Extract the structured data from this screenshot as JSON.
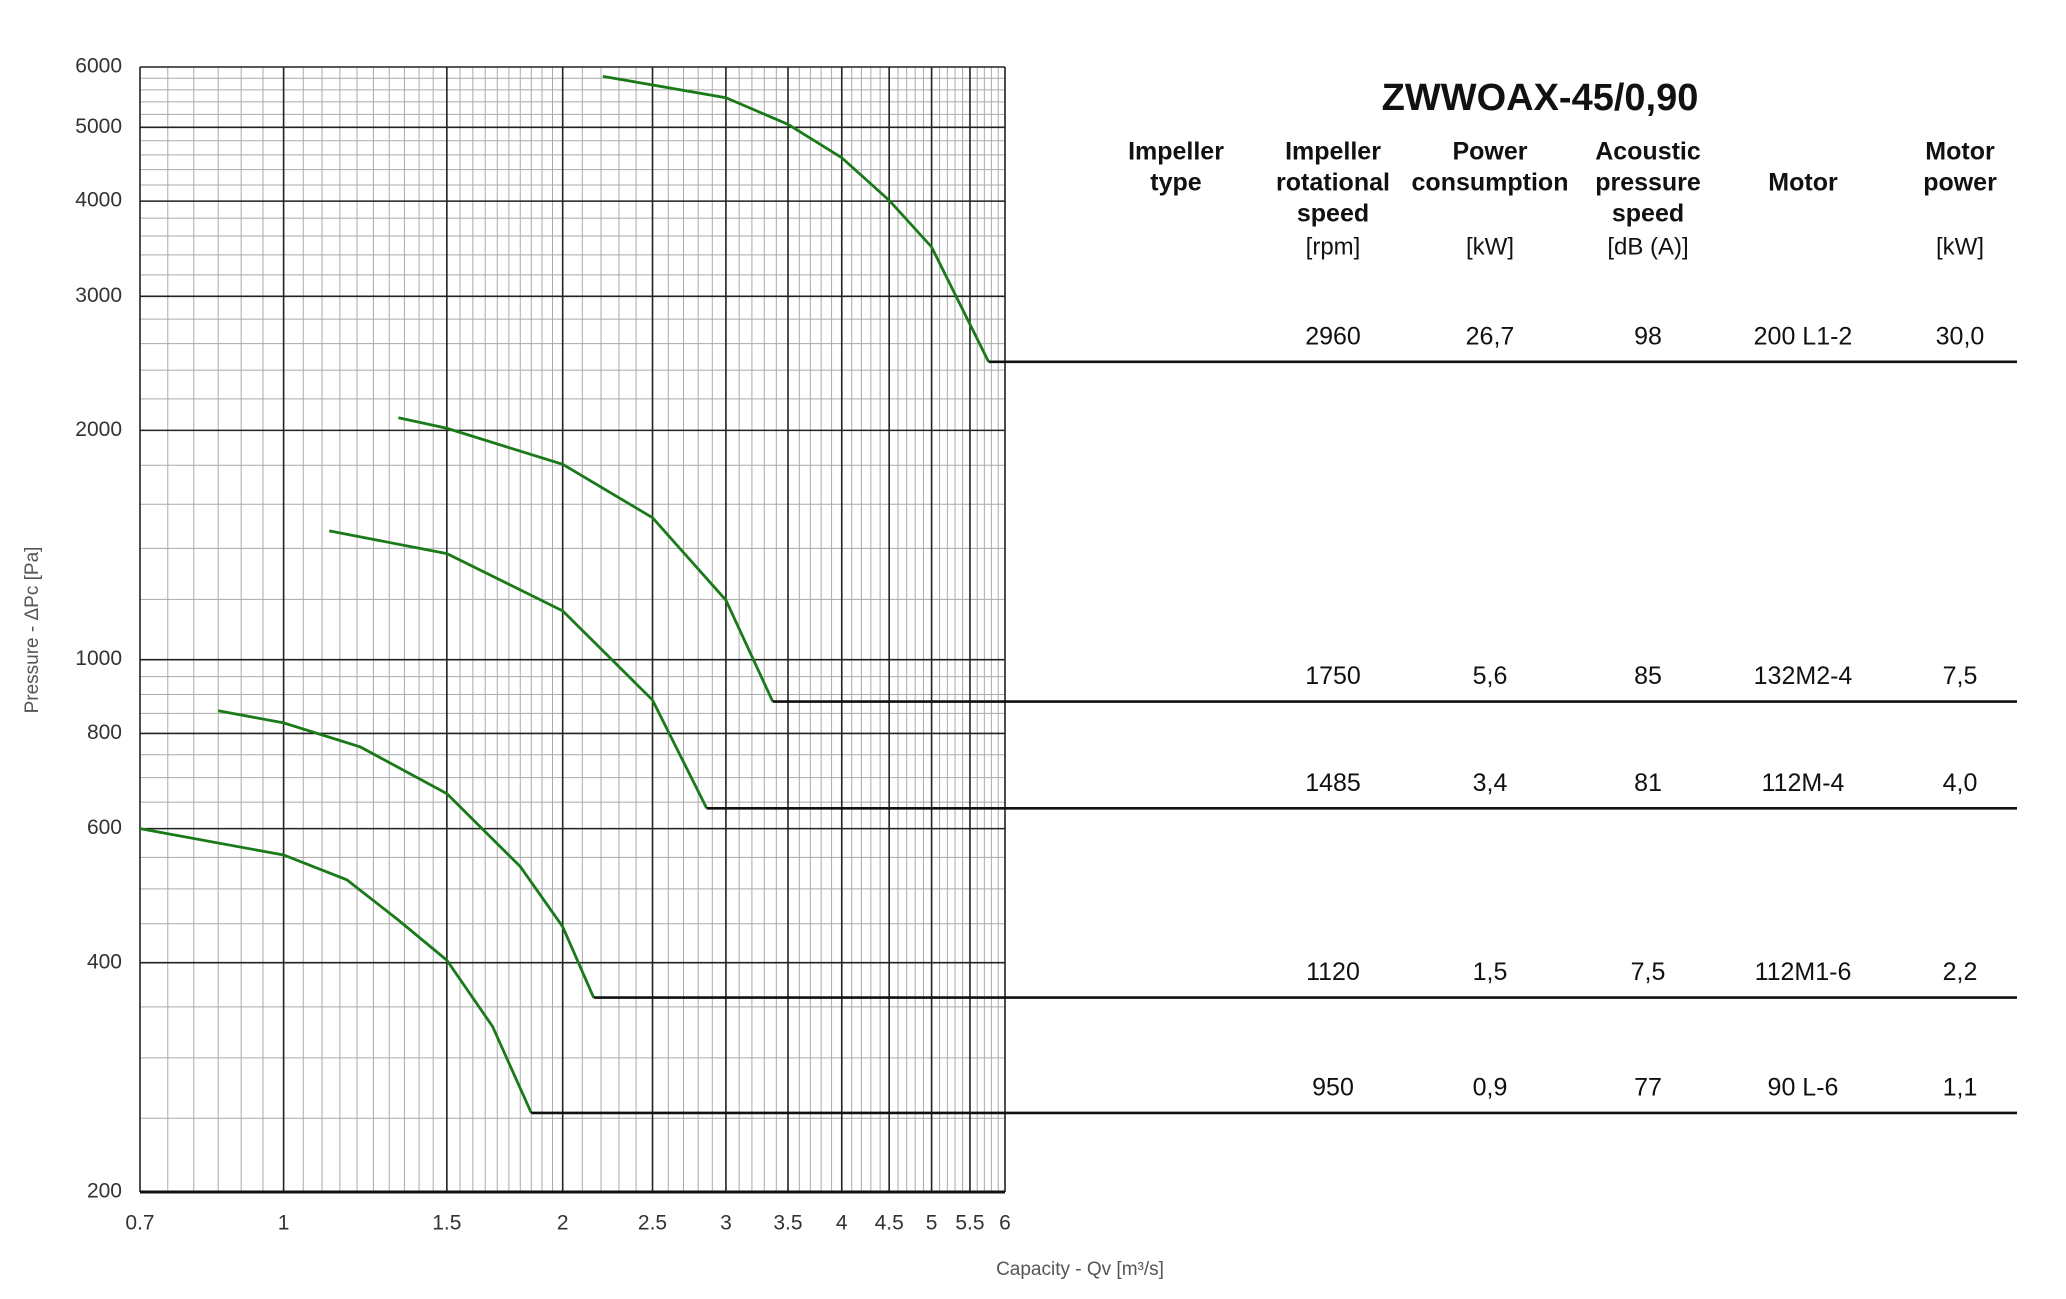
{
  "chart_data": {
    "type": "line",
    "x_label": "Capacity - Qv [m³/s]",
    "y_label": "Pressure - ΔPc [Pa]",
    "xscale": "log",
    "yscale": "log",
    "grid": true,
    "color": "#1a7a1a",
    "xlim": [
      0.7,
      6
    ],
    "xticks": [
      0.7,
      1,
      1.5,
      2,
      2.5,
      3,
      3.5,
      4,
      4.5,
      5,
      5.5,
      6
    ],
    "ylim": [
      200,
      6000
    ],
    "yticks": [
      200,
      400,
      600,
      800,
      1000,
      2000,
      3000,
      4000,
      5000,
      6000
    ],
    "series": [
      {
        "x": [
          2.21,
          3.0,
          3.5,
          4.0,
          4.5,
          5.0,
          5.76
        ],
        "values": [
          5833,
          5468,
          5045,
          4561,
          4009,
          3482,
          2461
        ]
      },
      {
        "x": [
          1.33,
          1.5,
          2.0,
          2.5,
          3.0,
          3.37
        ],
        "values": [
          2078,
          2013,
          1805,
          1536,
          1197,
          881
        ]
      },
      {
        "x": [
          1.12,
          1.5,
          2.0,
          2.5,
          2.86
        ],
        "values": [
          1476,
          1378,
          1159,
          885,
          638
        ]
      },
      {
        "x": [
          0.85,
          1.0,
          1.21,
          1.5,
          1.8,
          2.0,
          2.16
        ],
        "values": [
          857,
          826,
          768,
          667,
          535,
          446,
          360
        ]
      },
      {
        "x": [
          0.7,
          1.0,
          1.17,
          1.33,
          1.5,
          1.68,
          1.85
        ],
        "values": [
          600,
          554,
          514,
          455,
          403,
          330,
          254
        ]
      }
    ]
  },
  "table": {
    "title": "ZWWOAX-45/0,90",
    "columns": [
      {
        "label": [
          "Impeller",
          "type"
        ]
      },
      {
        "label": [
          "Impeller",
          "rotational",
          "speed"
        ],
        "unit": "[rpm]"
      },
      {
        "label": [
          "Power",
          "consumption"
        ],
        "unit": "[kW]"
      },
      {
        "label": [
          "Acoustic",
          "pressure",
          "speed"
        ],
        "unit": "[dB (A)]"
      },
      {
        "label": [
          "Motor"
        ]
      },
      {
        "label": [
          "Motor",
          "power"
        ],
        "unit": "[kW]"
      }
    ],
    "rows": [
      [
        "2960",
        "26,7",
        "98",
        "200 L1-2",
        "30,0"
      ],
      [
        "1750",
        "5,6",
        "85",
        "132M2-4",
        "7,5"
      ],
      [
        "1485",
        "3,4",
        "81",
        "112M-4",
        "4,0"
      ],
      [
        "1120",
        "1,5",
        "7,5",
        "112M1-6",
        "2,2"
      ],
      [
        "950",
        "0,9",
        "77",
        "90 L-6",
        "1,1"
      ]
    ]
  }
}
